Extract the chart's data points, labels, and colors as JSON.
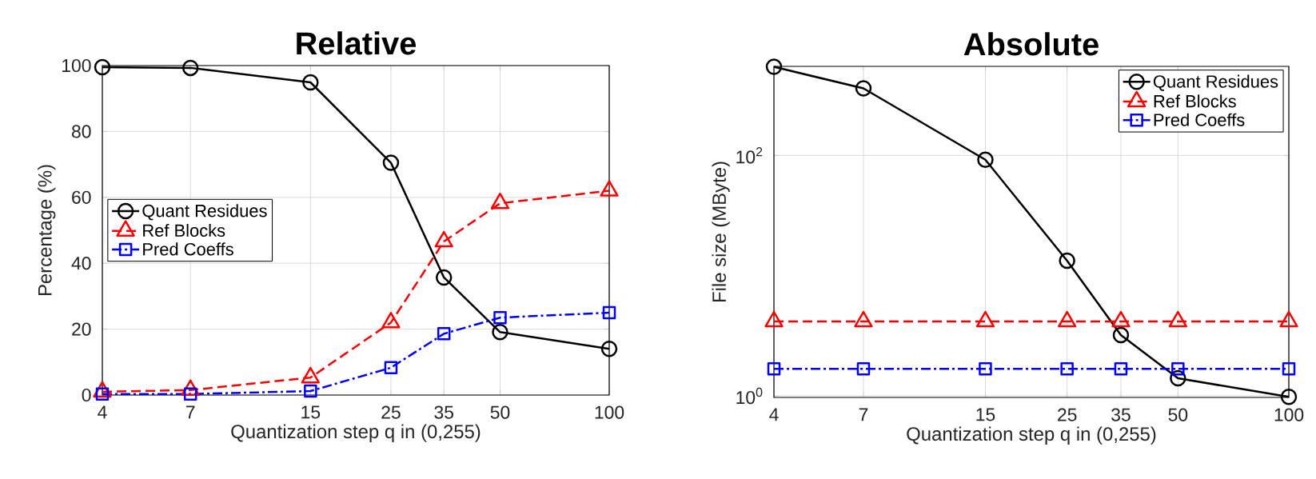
{
  "chart_data": [
    {
      "type": "line",
      "title": "Relative",
      "xlabel": "Quantization step q in (0,255)",
      "ylabel": "Percentage (%)",
      "log": "x",
      "grid": true,
      "legend": "left",
      "x": [
        4,
        7,
        15,
        25,
        35,
        50,
        100
      ],
      "xlim": [
        4,
        100
      ],
      "xticks": [
        4,
        7,
        15,
        25,
        35,
        50,
        100
      ],
      "ylim": [
        0,
        100
      ],
      "yticks": [
        0,
        20,
        40,
        60,
        80,
        100
      ],
      "series": [
        {
          "name": "Quant Residues",
          "color": "#000000",
          "marker": "circle",
          "line_style": "solid",
          "values": [
            99.5,
            99.3,
            94.9,
            70.5,
            35.7,
            19.1,
            14.0
          ]
        },
        {
          "name": "Ref Blocks",
          "color": "#ff0000",
          "marker": "triangle",
          "line_style": "dashed",
          "values": [
            1.0,
            1.5,
            5.3,
            22,
            46.6,
            58.2,
            62.0
          ]
        },
        {
          "name": "Pred Coeffs",
          "color": "#0000ff",
          "marker": "square",
          "line_style": "dashdot",
          "values": [
            0.3,
            0.3,
            1.2,
            8.3,
            18.6,
            23.5,
            25.0
          ]
        }
      ]
    },
    {
      "type": "line",
      "title": "Absolute",
      "xlabel": "Quantization step q in (0,255)",
      "ylabel": "File size (MByte)",
      "log": "xy",
      "grid": true,
      "legend": "top right",
      "x": [
        4,
        7,
        15,
        25,
        35,
        50,
        100
      ],
      "xlim": [
        4,
        100
      ],
      "xticks": [
        4,
        7,
        15,
        25,
        35,
        50,
        100
      ],
      "ylim": [
        0.97,
        550
      ],
      "yticks": [
        {
          "value": 1,
          "label": "10$^{0}$"
        },
        {
          "value": 100,
          "label": "10$^{2}$"
        }
      ],
      "series": [
        {
          "name": "Quant Residues",
          "color": "#000000",
          "marker": "circle",
          "line_style": "solid",
          "values": [
            545,
            361,
            92,
            13.3,
            3.2,
            1.4,
            0.98
          ]
        },
        {
          "name": "Ref Blocks",
          "color": "#ff0000",
          "marker": "triangle",
          "line_style": "dashed",
          "values": [
            4.15,
            4.15,
            4.15,
            4.15,
            4.15,
            4.15,
            4.15
          ]
        },
        {
          "name": "Pred Coeffs",
          "color": "#0000ff",
          "marker": "square",
          "line_style": "dashdot",
          "values": [
            1.68,
            1.68,
            1.68,
            1.68,
            1.68,
            1.68,
            1.68
          ]
        }
      ]
    }
  ]
}
